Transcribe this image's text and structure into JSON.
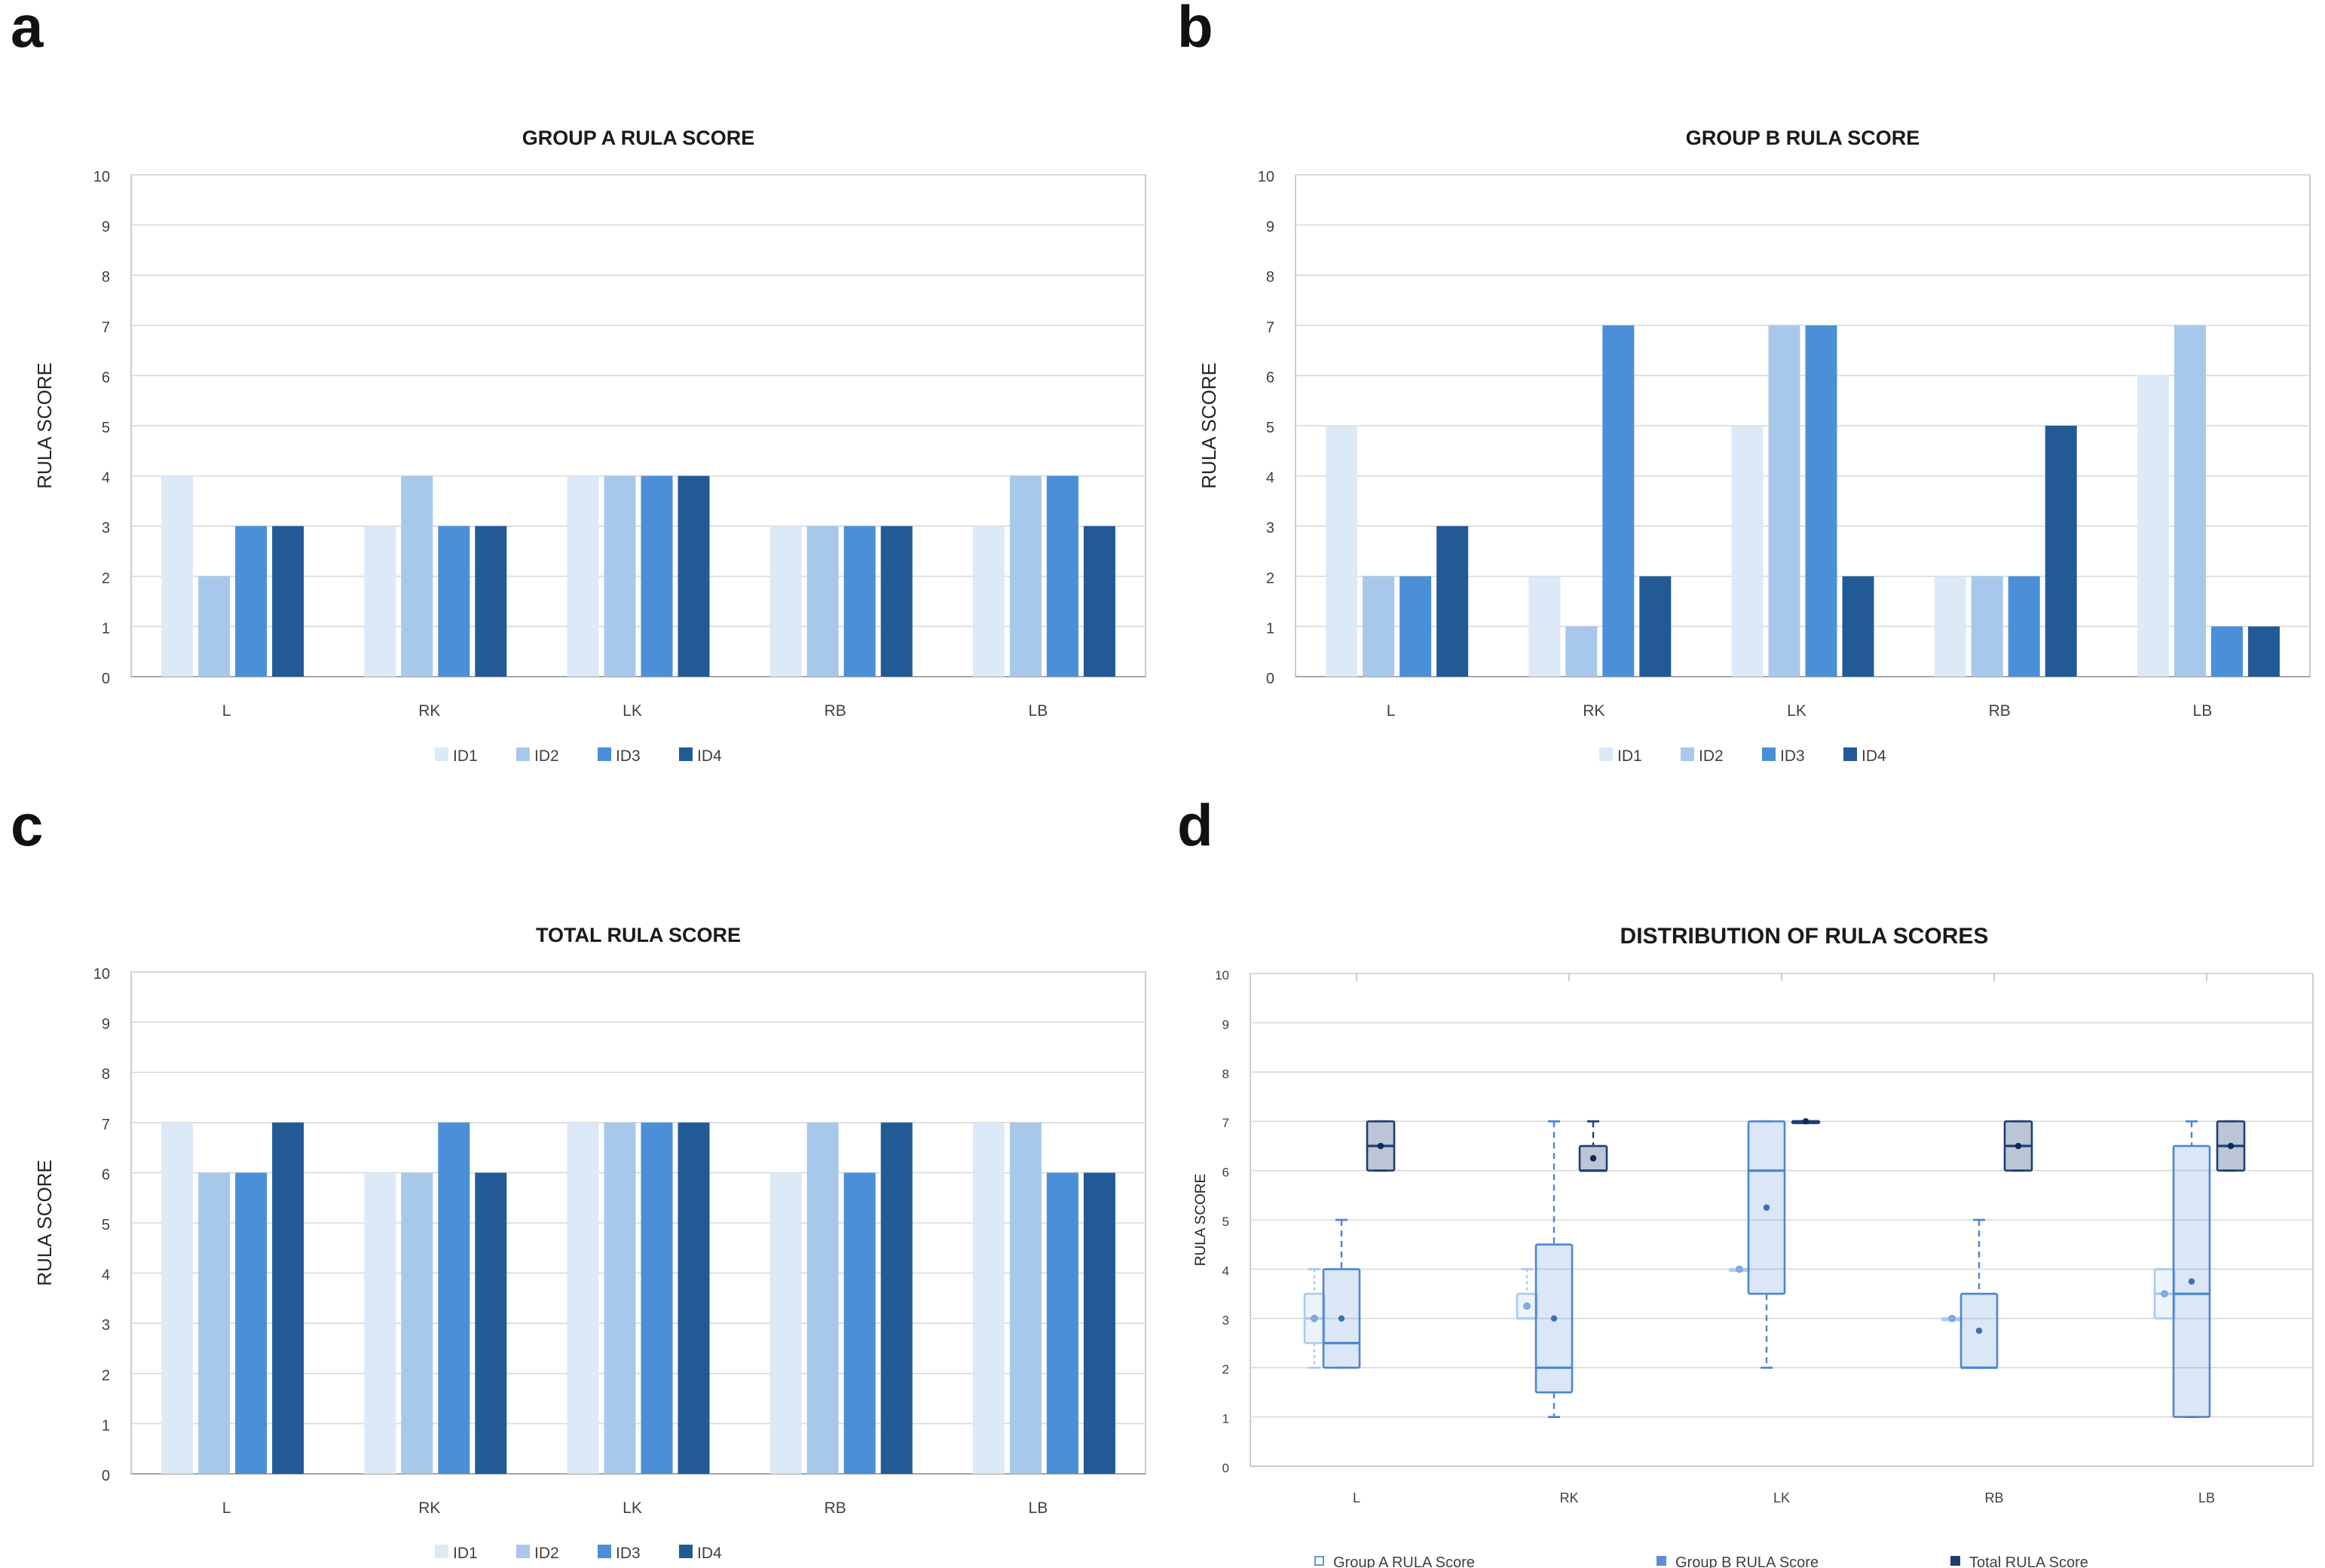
{
  "figure": {
    "panel_letters": [
      "a",
      "b",
      "c",
      "d"
    ]
  },
  "colors": {
    "ID1": "#dce9f7",
    "ID2": "#a7c8ea",
    "ID3": "#4a8fd8",
    "ID4": "#225a96",
    "grid": "#d9d9d9",
    "frame": "#bfbfbf",
    "groupA": "#b7d4f1",
    "groupB": "#5b8fd6",
    "total": "#1f3e73"
  },
  "chart_data": [
    {
      "id": "a",
      "type": "bar",
      "title": "GROUP A RULA SCORE",
      "xlabel": "",
      "ylabel": "RULA SCORE",
      "ylim": [
        0,
        10
      ],
      "yticks": [
        0,
        1,
        2,
        3,
        4,
        5,
        6,
        7,
        8,
        9,
        10
      ],
      "categories": [
        "L",
        "RK",
        "LK",
        "RB",
        "LB"
      ],
      "series": [
        {
          "name": "ID1",
          "values": [
            4,
            3,
            4,
            3,
            3
          ]
        },
        {
          "name": "ID2",
          "values": [
            2,
            4,
            4,
            3,
            4
          ]
        },
        {
          "name": "ID3",
          "values": [
            3,
            3,
            4,
            3,
            4
          ]
        },
        {
          "name": "ID4",
          "values": [
            3,
            3,
            4,
            3,
            3
          ]
        }
      ],
      "legend": "bottom"
    },
    {
      "id": "b",
      "type": "bar",
      "title": "GROUP B RULA SCORE",
      "xlabel": "",
      "ylabel": "RULA SCORE",
      "ylim": [
        0,
        10
      ],
      "yticks": [
        0,
        1,
        2,
        3,
        4,
        5,
        6,
        7,
        8,
        9,
        10
      ],
      "categories": [
        "L",
        "RK",
        "LK",
        "RB",
        "LB"
      ],
      "series": [
        {
          "name": "ID1",
          "values": [
            5,
            2,
            5,
            2,
            6
          ]
        },
        {
          "name": "ID2",
          "values": [
            2,
            1,
            7,
            2,
            7
          ]
        },
        {
          "name": "ID3",
          "values": [
            2,
            7,
            7,
            2,
            1
          ]
        },
        {
          "name": "ID4",
          "values": [
            3,
            2,
            2,
            5,
            1
          ]
        }
      ],
      "legend": "bottom"
    },
    {
      "id": "c",
      "type": "bar",
      "title": "TOTAL RULA SCORE",
      "xlabel": "",
      "ylabel": "RULA SCORE",
      "ylim": [
        0,
        10
      ],
      "yticks": [
        0,
        1,
        2,
        3,
        4,
        5,
        6,
        7,
        8,
        9,
        10
      ],
      "categories": [
        "L",
        "RK",
        "LK",
        "RB",
        "LB"
      ],
      "series": [
        {
          "name": "ID1",
          "values": [
            7,
            6,
            7,
            6,
            7
          ]
        },
        {
          "name": "ID2",
          "values": [
            6,
            6,
            7,
            7,
            7
          ]
        },
        {
          "name": "ID3",
          "values": [
            6,
            7,
            7,
            6,
            6
          ]
        },
        {
          "name": "ID4",
          "values": [
            7,
            6,
            7,
            7,
            6
          ]
        }
      ],
      "legend": "bottom"
    },
    {
      "id": "d",
      "type": "box",
      "title": "DISTRIBUTION OF RULA SCORES",
      "xlabel": "",
      "ylabel": "RULA SCORE",
      "ylim": [
        0,
        10
      ],
      "yticks": [
        0,
        1,
        2,
        3,
        4,
        5,
        6,
        7,
        8,
        9,
        10
      ],
      "categories": [
        "L",
        "RK",
        "LK",
        "RB",
        "LB"
      ],
      "series": [
        {
          "name": "Group A RULA Score",
          "boxes": [
            {
              "min": 2,
              "q1": 2.5,
              "median": 3,
              "q3": 3.5,
              "max": 4,
              "mean": 3
            },
            {
              "min": 3,
              "q1": 3,
              "median": 3,
              "q3": 3.5,
              "max": 4,
              "mean": 3.25
            },
            {
              "min": 4,
              "q1": 4,
              "median": 4,
              "q3": 4,
              "max": 4,
              "mean": 4
            },
            {
              "min": 3,
              "q1": 3,
              "median": 3,
              "q3": 3,
              "max": 3,
              "mean": 3
            },
            {
              "min": 3,
              "q1": 3,
              "median": 3.5,
              "q3": 4,
              "max": 4,
              "mean": 3.5
            }
          ]
        },
        {
          "name": "Group B RULA Score",
          "boxes": [
            {
              "min": 2,
              "q1": 2,
              "median": 2.5,
              "q3": 4,
              "max": 5,
              "mean": 3
            },
            {
              "min": 1,
              "q1": 1.5,
              "median": 2,
              "q3": 4.5,
              "max": 7,
              "mean": 3
            },
            {
              "min": 2,
              "q1": 3.5,
              "median": 6,
              "q3": 7,
              "max": 7,
              "mean": 5.25
            },
            {
              "min": 2,
              "q1": 2,
              "median": 2,
              "q3": 3.5,
              "max": 5,
              "mean": 2.75
            },
            {
              "min": 1,
              "q1": 1,
              "median": 3.5,
              "q3": 6.5,
              "max": 7,
              "mean": 3.75
            }
          ]
        },
        {
          "name": "Total RULA Score",
          "boxes": [
            {
              "min": 6,
              "q1": 6,
              "median": 6.5,
              "q3": 7,
              "max": 7,
              "mean": 6.5
            },
            {
              "min": 6,
              "q1": 6,
              "median": 6,
              "q3": 6.5,
              "max": 7,
              "mean": 6.25
            },
            {
              "min": 7,
              "q1": 7,
              "median": 7,
              "q3": 7,
              "max": 7,
              "mean": 7
            },
            {
              "min": 6,
              "q1": 6,
              "median": 6.5,
              "q3": 7,
              "max": 7,
              "mean": 6.5
            },
            {
              "min": 6,
              "q1": 6,
              "median": 6.5,
              "q3": 7,
              "max": 7,
              "mean": 6.5
            }
          ]
        }
      ],
      "legend": "bottom"
    }
  ]
}
